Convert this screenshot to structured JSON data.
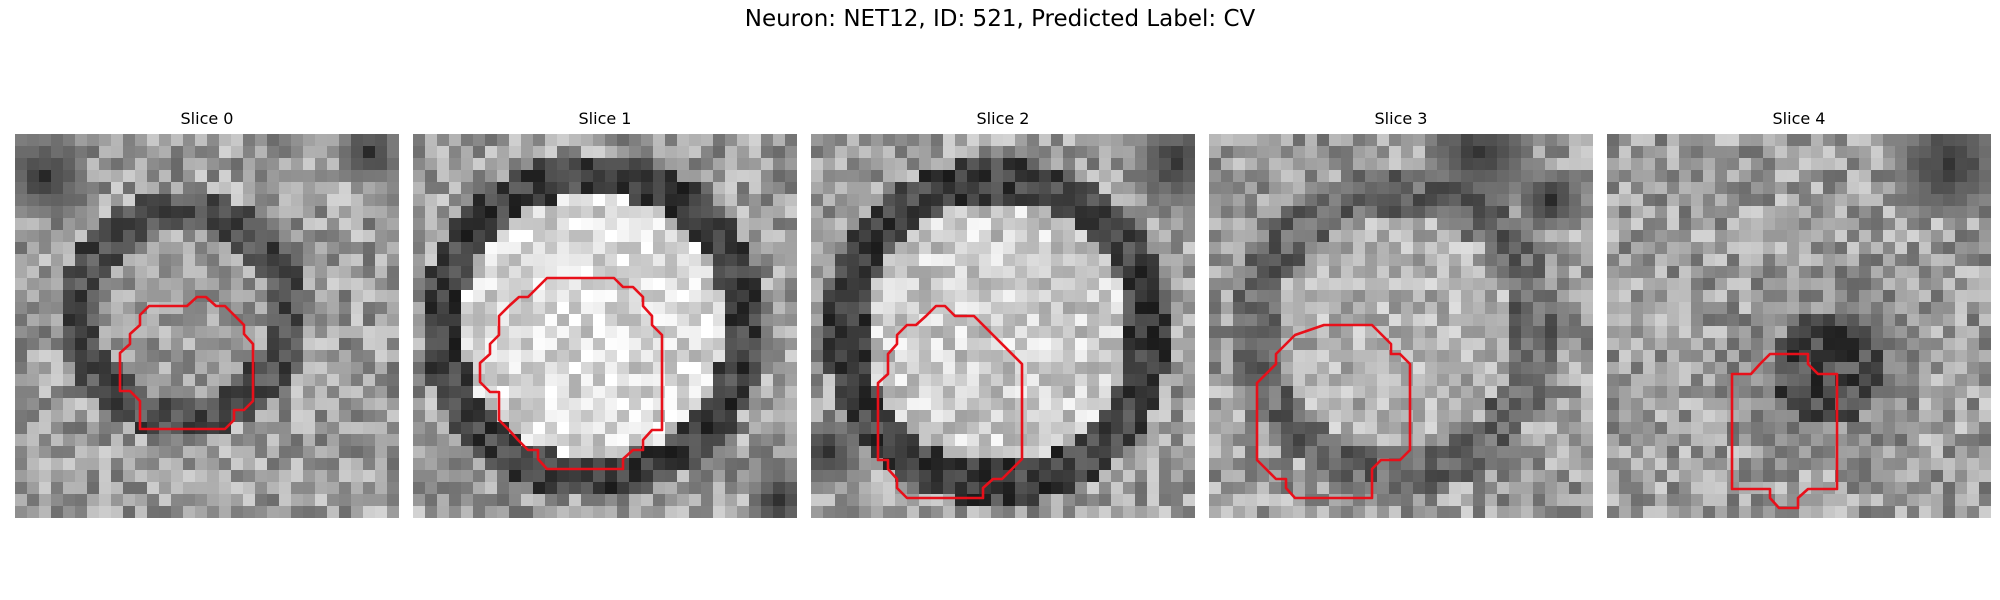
{
  "figure": {
    "title": "Neuron: NET12, ID: 521, Predicted Label: CV"
  },
  "panels": [
    {
      "title": "Slice 0"
    },
    {
      "title": "Slice 1"
    },
    {
      "title": "Slice 2"
    },
    {
      "title": "Slice 3"
    },
    {
      "title": "Slice 4"
    }
  ],
  "colors": {
    "contour": "#e8101a",
    "background": "#ffffff"
  }
}
